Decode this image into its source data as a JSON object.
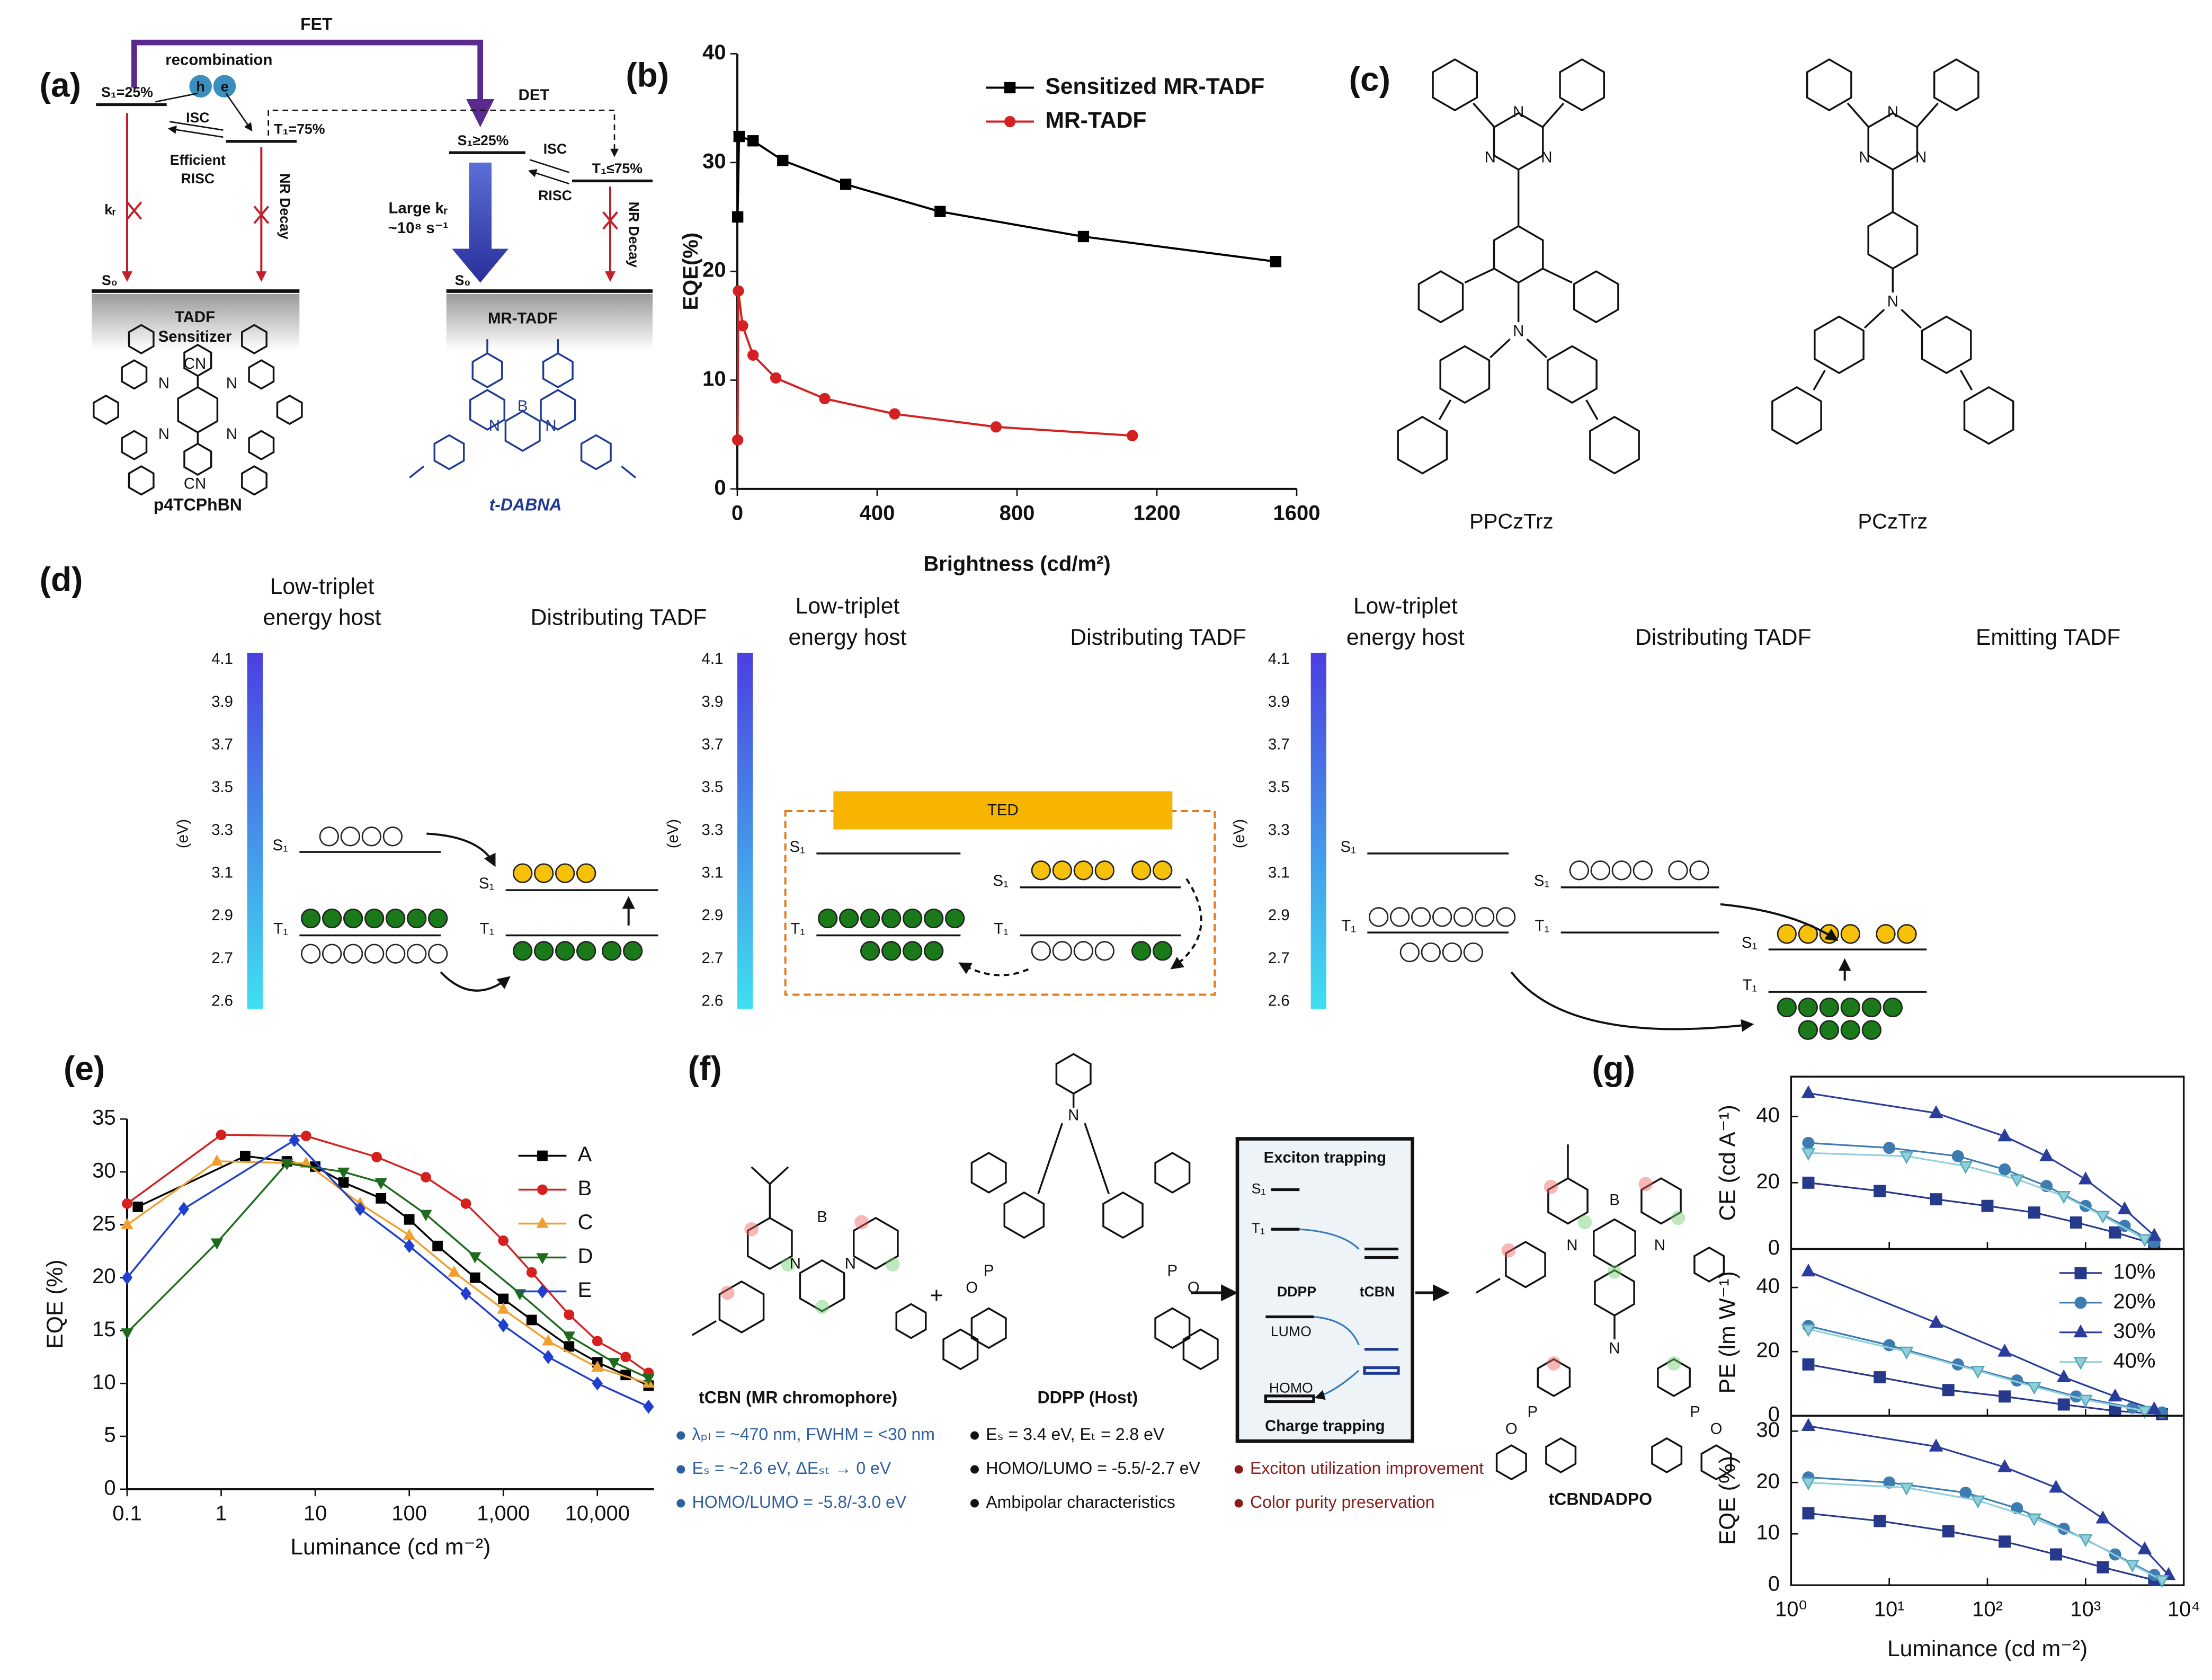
{
  "panel_labels": [
    "(a)",
    "(b)",
    "(c)",
    "(d)",
    "(e)",
    "(f)",
    "(g)"
  ],
  "diagram_a": {
    "fet": "FET",
    "recombination": "recombination",
    "hole": "h",
    "electron": "e",
    "s1_left": "S₁=25%",
    "isc_left": "ISC",
    "efficient": "Efficient",
    "risc_left": "RISC",
    "t1_left": "T₁=75%",
    "det": "DET",
    "s1_right": "S₁≥25%",
    "isc_right": "ISC",
    "risc_right": "RISC",
    "t1_right": "T₁≤75%",
    "kr": "kᵣ",
    "nr_left": "NR Decay",
    "large_kr": "Large kᵣ",
    "rate": "~10⁸ s⁻¹",
    "nr_right": "NR Decay",
    "s0_left": "S₀",
    "s0_right": "S₀",
    "sensitizer": [
      "TADF",
      "Sensitizer"
    ],
    "mr_tadf": "MR-TADF",
    "molecule_left": "p4TCPhBN",
    "molecule_right": "t-DABNA",
    "atoms_left": [
      "CN",
      "N",
      "N",
      "N",
      "N",
      "CN"
    ],
    "atoms_right": [
      "B",
      "N",
      "N"
    ]
  },
  "chart_data": [
    {
      "type": "line",
      "xlabel": "Brightness (cd/m²)",
      "ylabel": "EQE(%)",
      "xlim": [
        0,
        1600
      ],
      "ylim": [
        0,
        40
      ],
      "xticks": [
        0,
        400,
        800,
        1200,
        1600
      ],
      "yticks": [
        0,
        10,
        20,
        30,
        40
      ],
      "legend": "upper right",
      "series": [
        {
          "name": "Sensitized MR-TADF",
          "color": "#000000",
          "marker": "square",
          "x": [
            1,
            5,
            45,
            130,
            310,
            580,
            990,
            1540
          ],
          "values": [
            25,
            32.4,
            32,
            30.2,
            28,
            25.5,
            23.2,
            20.9
          ]
        },
        {
          "name": "MR-TADF",
          "color": "#d42020",
          "marker": "circle",
          "x": [
            1,
            3,
            15,
            45,
            110,
            250,
            450,
            740,
            1130
          ],
          "values": [
            4.5,
            18.2,
            15,
            12.3,
            10.2,
            8.3,
            6.9,
            5.7,
            4.9
          ]
        }
      ]
    },
    {
      "type": "line",
      "xscale": "log",
      "xlabel": "Luminance (cd m⁻²)",
      "ylabel": "EQE (%)",
      "xlim": [
        0.1,
        40000
      ],
      "ylim": [
        0,
        35
      ],
      "xticks": [
        0.1,
        1,
        10,
        100,
        {
          "value": 1000,
          "label": "1,000"
        },
        {
          "value": 10000,
          "label": "10,000"
        }
      ],
      "yticks": [
        0,
        5,
        10,
        15,
        20,
        25,
        30,
        35
      ],
      "legend": "upper right",
      "series": [
        {
          "name": "A",
          "color": "#000000",
          "marker": "square",
          "x": [
            0.13,
            1.8,
            5,
            10,
            20,
            50,
            100,
            200,
            500,
            1000,
            2000,
            5000,
            10000,
            20000,
            35000
          ],
          "values": [
            26.7,
            31.5,
            31,
            30.5,
            29,
            27.5,
            25.5,
            23,
            20,
            18,
            16,
            13.5,
            12,
            10.8,
            9.8
          ]
        },
        {
          "name": "B",
          "color": "#d62020",
          "marker": "circle",
          "x": [
            0.1,
            1,
            8,
            45,
            150,
            400,
            1000,
            2000,
            5000,
            10000,
            20000,
            35000
          ],
          "values": [
            27,
            33.5,
            33.4,
            31.4,
            29.5,
            27,
            23.5,
            20.5,
            16.5,
            14,
            12.5,
            11
          ]
        },
        {
          "name": "C",
          "color": "#f0a030",
          "marker": "triangle",
          "x": [
            0.1,
            0.9,
            8,
            30,
            100,
            300,
            1000,
            3000,
            10000,
            35000
          ],
          "values": [
            25,
            31,
            30.8,
            27,
            24,
            20.5,
            17,
            14,
            11.5,
            10
          ]
        },
        {
          "name": "D",
          "color": "#1e6b1e",
          "marker": "triangle-down",
          "x": [
            0.1,
            0.9,
            5,
            20,
            50,
            150,
            500,
            1500,
            5000,
            15000,
            35000
          ],
          "values": [
            14.8,
            23.3,
            30.8,
            30,
            29,
            26,
            22,
            18.5,
            14.5,
            12,
            10.5
          ]
        },
        {
          "name": "E",
          "color": "#1f3fd0",
          "marker": "diamond",
          "x": [
            0.1,
            0.4,
            6,
            30,
            100,
            400,
            1000,
            3000,
            10000,
            35000
          ],
          "values": [
            20,
            26.5,
            33,
            26.5,
            23,
            18.5,
            15.5,
            12.5,
            10,
            7.8
          ]
        }
      ]
    },
    {
      "type": "line",
      "xscale": "log",
      "ylabel": "CE (cd A⁻¹)",
      "xlim": [
        1,
        10000
      ],
      "ylim": [
        0,
        52
      ],
      "yticks": [
        0,
        20,
        40
      ],
      "series": [
        {
          "color": "#27398a",
          "marker": "square",
          "x": [
            1.5,
            8,
            30,
            100,
            300,
            800,
            2000,
            5000
          ],
          "values": [
            20,
            17.5,
            15,
            13,
            11,
            8,
            5,
            1.5
          ]
        },
        {
          "color": "#3d7bb0",
          "marker": "circle",
          "x": [
            1.5,
            10,
            50,
            150,
            400,
            1000,
            2500,
            5000
          ],
          "values": [
            32,
            30.5,
            28,
            24,
            19,
            13,
            7,
            2
          ]
        },
        {
          "color": "#2a3d9c",
          "marker": "triangle",
          "x": [
            1.5,
            30,
            150,
            400,
            1000,
            2500,
            5000
          ],
          "values": [
            47,
            41,
            34,
            28,
            21,
            12,
            4
          ]
        },
        {
          "color": "#8fd0dc",
          "marker": "triangle-down",
          "x": [
            1.5,
            15,
            60,
            200,
            600,
            1500,
            4000
          ],
          "values": [
            29,
            28,
            25,
            21,
            16,
            10,
            3
          ]
        }
      ]
    },
    {
      "type": "line",
      "xscale": "log",
      "ylabel": "PE (lm W⁻¹)",
      "xlim": [
        1,
        10000
      ],
      "ylim": [
        0,
        52
      ],
      "yticks": [
        0,
        20,
        40
      ],
      "legend": "upper right",
      "series": [
        {
          "name": "10%",
          "color": "#27398a",
          "marker": "square",
          "x": [
            1.5,
            8,
            40,
            150,
            600,
            2000,
            6000
          ],
          "values": [
            16,
            12,
            8,
            6,
            3.5,
            1.5,
            0.5
          ]
        },
        {
          "name": "20%",
          "color": "#3d7bb0",
          "marker": "circle",
          "x": [
            1.5,
            10,
            50,
            200,
            800,
            3000,
            6000
          ],
          "values": [
            28,
            22,
            16,
            11,
            6,
            2.5,
            1
          ]
        },
        {
          "name": "30%",
          "color": "#2a3d9c",
          "marker": "triangle",
          "x": [
            1.5,
            30,
            150,
            600,
            2000,
            5000
          ],
          "values": [
            45,
            29,
            20,
            12,
            6,
            2
          ]
        },
        {
          "name": "40%",
          "color": "#8fd0dc",
          "marker": "triangle-down",
          "x": [
            1.5,
            15,
            80,
            300,
            1000,
            4000
          ],
          "values": [
            27,
            20,
            14,
            9,
            5,
            1.5
          ]
        }
      ]
    },
    {
      "type": "line",
      "xscale": "log",
      "xlabel": "Luminance (cd m⁻²)",
      "ylabel": "EQE (%)",
      "xlim": [
        1,
        10000
      ],
      "ylim": [
        0,
        33
      ],
      "xticks": [
        {
          "value": 1,
          "label": "10⁰"
        },
        {
          "value": 10,
          "label": "10¹"
        },
        {
          "value": 100,
          "label": "10²"
        },
        {
          "value": 1000,
          "label": "10³"
        },
        {
          "value": 10000,
          "label": "10⁴"
        }
      ],
      "yticks": [
        0,
        10,
        20,
        30
      ],
      "series": [
        {
          "color": "#27398a",
          "marker": "square",
          "x": [
            1.5,
            8,
            40,
            150,
            500,
            1500,
            5000
          ],
          "values": [
            14,
            12.5,
            10.5,
            8.5,
            6,
            3.5,
            1
          ]
        },
        {
          "color": "#3d7bb0",
          "marker": "circle",
          "x": [
            1.5,
            10,
            60,
            200,
            600,
            2000,
            5000
          ],
          "values": [
            21,
            20,
            18,
            15,
            11,
            6,
            2
          ]
        },
        {
          "color": "#2a3d9c",
          "marker": "triangle",
          "x": [
            1.5,
            30,
            150,
            500,
            1500,
            4000,
            7000
          ],
          "values": [
            31,
            27,
            23,
            19,
            13,
            7,
            2
          ]
        },
        {
          "color": "#8fd0dc",
          "marker": "triangle-down",
          "x": [
            1.5,
            15,
            80,
            300,
            1000,
            3000,
            6000
          ],
          "values": [
            20,
            19,
            16.5,
            13,
            9,
            4,
            1
          ]
        }
      ]
    }
  ],
  "diagram_c": {
    "molecules": [
      {
        "name": "PPCzTrz",
        "atoms": [
          "N",
          "N",
          "N",
          "N"
        ]
      },
      {
        "name": "PCzTrz",
        "atoms": [
          "N",
          "N",
          "N",
          "N"
        ]
      }
    ]
  },
  "diagram_d": {
    "axis_label": "(eV)",
    "axis_ticks": [
      "4.1",
      "3.9",
      "3.7",
      "3.5",
      "3.3",
      "3.1",
      "2.9",
      "2.7",
      "2.6"
    ],
    "panels": [
      {
        "host": [
          "Low-triplet",
          "energy host"
        ],
        "distributing": "Distributing TADF",
        "levels": [
          "S₁",
          "T₁",
          "S₁",
          "T₁"
        ]
      },
      {
        "host": [
          "Low-triplet",
          "energy host"
        ],
        "distributing": "Distributing TADF",
        "ted": "TED",
        "levels": [
          "S₁",
          "T₁",
          "S₁",
          "T₁"
        ]
      },
      {
        "host": [
          "Low-triplet",
          "energy host"
        ],
        "distributing": "Distributing TADF",
        "emitting": "Emitting TADF",
        "levels": [
          "S₁",
          "T₁",
          "S₁",
          "T₁",
          "S₁",
          "T₁"
        ]
      }
    ]
  },
  "diagram_f": {
    "plus": "+",
    "tcbn": {
      "name": "tCBN (MR chromophore)",
      "atoms": [
        "B",
        "N",
        "N"
      ],
      "properties": [
        "λₚₗ = ~470 nm, FWHM = <30 nm",
        "Eₛ = ~2.6 eV, ΔEₛₜ → 0 eV",
        "HOMO/LUMO = -5.8/-3.0 eV"
      ]
    },
    "ddpp": {
      "name": "DDPP (Host)",
      "atoms": [
        "N",
        "P",
        "O",
        "P",
        "O"
      ],
      "properties": [
        "Eₛ = 3.4 eV, Eₜ = 2.8 eV",
        "HOMO/LUMO = -5.5/-2.7 eV",
        "Ambipolar characteristics"
      ]
    },
    "box": {
      "top": "Exciton trapping",
      "s1": "S₁",
      "t1": "T₁",
      "host": "DDPP",
      "guest": "tCBN",
      "lumo": "LUMO",
      "homo": "HOMO",
      "bottom": "Charge trapping"
    },
    "benefits": [
      "Exciton utilization improvement",
      "Color purity preservation"
    ],
    "product": {
      "name": "tCBNDADPO",
      "atoms": [
        "B",
        "N",
        "N",
        "N",
        "P",
        "O",
        "P",
        "O"
      ]
    }
  }
}
